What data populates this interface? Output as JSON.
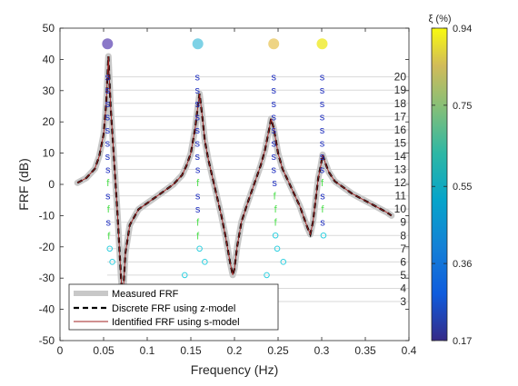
{
  "chart_data": {
    "type": "line",
    "xlabel": "Frequency (Hz)",
    "ylabel": "FRF (dB)",
    "xlim": [
      0,
      0.4
    ],
    "ylim": [
      -50,
      50
    ],
    "xticks": [
      0,
      0.05,
      0.1,
      0.15,
      0.2,
      0.25,
      0.3,
      0.35,
      0.4
    ],
    "xtick_labels": [
      "0",
      "0.05",
      "0.1",
      "0.15",
      "0.2",
      "0.25",
      "0.3",
      "0.35",
      "0.4"
    ],
    "yticks": [
      -50,
      -40,
      -30,
      -20,
      -10,
      0,
      10,
      20,
      30,
      40,
      50
    ],
    "ytick_labels": [
      "-50",
      "-40",
      "-30",
      "-20",
      "-10",
      "0",
      "10",
      "20",
      "30",
      "40",
      "50"
    ],
    "grid": "model-order lines only",
    "legend_position": "bottom-left",
    "series": [
      {
        "name": "Measured FRF",
        "color": "#c8c8c8",
        "style": "thick solid"
      },
      {
        "name": "Discrete FRF using z-model",
        "color": "#000000",
        "style": "dashed"
      },
      {
        "name": "Identified FRF using s-model",
        "color": "#a02020",
        "style": "thin solid"
      }
    ],
    "frf_curve": {
      "x": [
        0.02,
        0.03,
        0.04,
        0.045,
        0.05,
        0.053,
        0.0555,
        0.058,
        0.062,
        0.066,
        0.07,
        0.072,
        0.075,
        0.08,
        0.09,
        0.1,
        0.11,
        0.12,
        0.13,
        0.14,
        0.145,
        0.15,
        0.155,
        0.158,
        0.16,
        0.163,
        0.166,
        0.17,
        0.175,
        0.18,
        0.185,
        0.19,
        0.195,
        0.198,
        0.2,
        0.203,
        0.208,
        0.215,
        0.22,
        0.225,
        0.23,
        0.235,
        0.24,
        0.242,
        0.245,
        0.25,
        0.255,
        0.26,
        0.265,
        0.27,
        0.275,
        0.28,
        0.284,
        0.287,
        0.29,
        0.293,
        0.296,
        0.299,
        0.301,
        0.304,
        0.308,
        0.315,
        0.325,
        0.335,
        0.345,
        0.355,
        0.365,
        0.375,
        0.38
      ],
      "y": [
        0.5,
        2,
        5,
        9,
        16,
        26,
        41,
        25,
        8,
        -10,
        -30,
        -37,
        -22,
        -13,
        -8,
        -6,
        -4,
        -2,
        0,
        3,
        6,
        10,
        18,
        25,
        29,
        22,
        14,
        8,
        2,
        -4,
        -10,
        -17,
        -25,
        -29,
        -27,
        -20,
        -12,
        -6,
        -2,
        2,
        6,
        11,
        18,
        21,
        18,
        10,
        5,
        2,
        -1,
        -4,
        -7,
        -11,
        -14,
        -16,
        -12,
        -5,
        2,
        6,
        9.5,
        7,
        4,
        1,
        -1,
        -3,
        -4.5,
        -6,
        -7.5,
        -9,
        -10
      ]
    },
    "model_orders": [
      "3",
      "4",
      "5",
      "6",
      "7",
      "8",
      "9",
      "10",
      "11",
      "12",
      "13",
      "14",
      "15",
      "16",
      "17",
      "18",
      "19",
      "20"
    ],
    "stability_marks": {
      "mode1": {
        "x": [
          0.0545,
          0.0545,
          0.0545,
          0.0545,
          0.0545,
          0.0545,
          0.0545,
          0.055,
          0.055,
          0.055,
          0.0555,
          0.0555,
          0.056,
          0.057,
          0.06
        ],
        "order": [
          20,
          19,
          18,
          17,
          16,
          15,
          14,
          13,
          12,
          11,
          10,
          9,
          8,
          7,
          6
        ],
        "symbol": [
          "s",
          "s",
          "s",
          "s",
          "s",
          "s",
          "s",
          "s",
          "f",
          "s",
          "f",
          "s",
          "f",
          "o",
          "o"
        ]
      },
      "mode2": {
        "x": [
          0.1575,
          0.1575,
          0.1575,
          0.1575,
          0.1575,
          0.1575,
          0.1575,
          0.158,
          0.158,
          0.158,
          0.158,
          0.158,
          0.158,
          0.16,
          0.166,
          0.143
        ],
        "order": [
          20,
          19,
          18,
          17,
          16,
          15,
          14,
          13,
          12,
          11,
          10,
          9,
          8,
          7,
          6,
          5
        ],
        "symbol": [
          "s",
          "s",
          "s",
          "s",
          "s",
          "s",
          "s",
          "s",
          "f",
          "s",
          "s",
          "f",
          "f",
          "o",
          "o",
          "o"
        ]
      },
      "mode3": {
        "x": [
          0.245,
          0.245,
          0.245,
          0.245,
          0.245,
          0.245,
          0.245,
          0.245,
          0.246,
          0.246,
          0.247,
          0.247,
          0.247,
          0.249,
          0.256,
          0.237
        ],
        "order": [
          20,
          19,
          18,
          17,
          16,
          15,
          14,
          13,
          12,
          11,
          10,
          9,
          8,
          7,
          6,
          5
        ],
        "symbol": [
          "s",
          "s",
          "s",
          "s",
          "s",
          "s",
          "s",
          "s",
          "s",
          "f",
          "f",
          "f",
          "o",
          "o",
          "o",
          "o"
        ]
      },
      "mode4": {
        "x": [
          0.3005,
          0.3005,
          0.3005,
          0.3005,
          0.3005,
          0.3005,
          0.3005,
          0.3005,
          0.3005,
          0.301,
          0.301,
          0.301,
          0.302
        ],
        "order": [
          20,
          19,
          18,
          17,
          16,
          15,
          14,
          13,
          12,
          11,
          10,
          9,
          8
        ],
        "symbol": [
          "s",
          "s",
          "s",
          "s",
          "s",
          "s",
          "s",
          "s",
          "f",
          "s",
          "f",
          "s",
          "o"
        ]
      }
    },
    "symbol_colors": {
      "s": "#2030c0",
      "f": "#50e050",
      "o": "#30d0e0"
    },
    "mode_dots": {
      "x": [
        0.0545,
        0.158,
        0.245,
        0.3005
      ],
      "damping": [
        0.17,
        0.5,
        0.78,
        0.94
      ],
      "colors": [
        "#8a78c8",
        "#7ed2e6",
        "#eed484",
        "#f2ee52"
      ]
    },
    "colorbar": {
      "label": "ξ (%)",
      "ticks": [
        "0.17",
        "0.36",
        "0.55",
        "0.75",
        "0.94"
      ],
      "values": [
        0.17,
        0.36,
        0.55,
        0.75,
        0.94
      ],
      "range": [
        0.17,
        0.94
      ]
    }
  }
}
